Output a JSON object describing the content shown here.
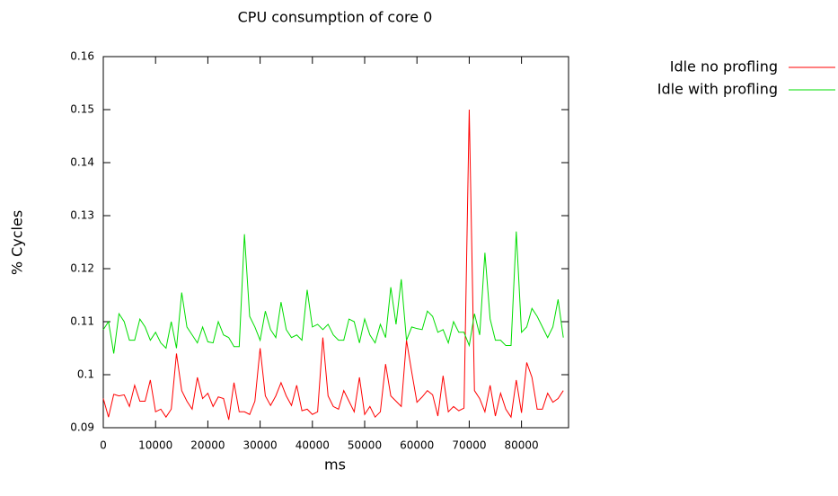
{
  "chart_data": {
    "type": "line",
    "title": "CPU consumption of core 0",
    "xlabel": "ms",
    "ylabel": "% Cycles",
    "x": [
      0,
      1000,
      2000,
      3000,
      4000,
      5000,
      6000,
      7000,
      8000,
      9000,
      10000,
      11000,
      12000,
      13000,
      14000,
      15000,
      16000,
      17000,
      18000,
      19000,
      20000,
      21000,
      22000,
      23000,
      24000,
      25000,
      26000,
      27000,
      28000,
      29000,
      30000,
      31000,
      32000,
      33000,
      34000,
      35000,
      36000,
      37000,
      38000,
      39000,
      40000,
      41000,
      42000,
      43000,
      44000,
      45000,
      46000,
      47000,
      48000,
      49000,
      50000,
      51000,
      52000,
      53000,
      54000,
      55000,
      56000,
      57000,
      58000,
      59000,
      60000,
      61000,
      62000,
      63000,
      64000,
      65000,
      66000,
      67000,
      68000,
      69000,
      70000,
      71000,
      72000,
      73000,
      74000,
      75000,
      76000,
      77000,
      78000,
      79000,
      80000,
      81000,
      82000,
      83000,
      84000,
      85000,
      86000,
      87000,
      88000
    ],
    "series": [
      {
        "name": "Idle no profling",
        "color": "#ff0000",
        "values": [
          0.0955,
          0.092,
          0.0963,
          0.096,
          0.0962,
          0.094,
          0.098,
          0.095,
          0.095,
          0.099,
          0.093,
          0.0935,
          0.092,
          0.0935,
          0.104,
          0.097,
          0.095,
          0.0935,
          0.0995,
          0.0955,
          0.0965,
          0.094,
          0.0958,
          0.0955,
          0.0915,
          0.0985,
          0.093,
          0.093,
          0.0925,
          0.095,
          0.105,
          0.096,
          0.0942,
          0.096,
          0.0985,
          0.096,
          0.0942,
          0.098,
          0.0932,
          0.0935,
          0.0925,
          0.093,
          0.107,
          0.096,
          0.094,
          0.0935,
          0.097,
          0.095,
          0.093,
          0.0995,
          0.0925,
          0.094,
          0.092,
          0.093,
          0.102,
          0.096,
          0.095,
          0.094,
          0.1065,
          0.1005,
          0.0948,
          0.0958,
          0.097,
          0.0962,
          0.0922,
          0.0998,
          0.093,
          0.094,
          0.0932,
          0.0937,
          0.15,
          0.097,
          0.0955,
          0.093,
          0.098,
          0.0922,
          0.0965,
          0.0935,
          0.092,
          0.099,
          0.0928,
          0.1023,
          0.0995,
          0.0935,
          0.0935,
          0.0965,
          0.0948,
          0.0955,
          0.097
        ]
      },
      {
        "name": "Idle with profling",
        "color": "#00dd00",
        "values": [
          0.1085,
          0.11,
          0.104,
          0.1115,
          0.11,
          0.1065,
          0.1065,
          0.1105,
          0.109,
          0.1065,
          0.108,
          0.106,
          0.105,
          0.11,
          0.105,
          0.1155,
          0.109,
          0.1075,
          0.106,
          0.109,
          0.1062,
          0.106,
          0.11,
          0.1075,
          0.107,
          0.1053,
          0.1053,
          0.1265,
          0.111,
          0.109,
          0.1065,
          0.112,
          0.1085,
          0.107,
          0.1137,
          0.1085,
          0.107,
          0.1075,
          0.1065,
          0.116,
          0.109,
          0.1095,
          0.1085,
          0.1095,
          0.1075,
          0.1065,
          0.1065,
          0.1105,
          0.11,
          0.106,
          0.1105,
          0.1075,
          0.106,
          0.1095,
          0.107,
          0.1165,
          0.1095,
          0.118,
          0.1065,
          0.109,
          0.1087,
          0.1085,
          0.112,
          0.111,
          0.108,
          0.1085,
          0.106,
          0.11,
          0.108,
          0.108,
          0.1055,
          0.1115,
          0.1075,
          0.123,
          0.1105,
          0.1065,
          0.1065,
          0.1055,
          0.1055,
          0.127,
          0.108,
          0.109,
          0.1125,
          0.111,
          0.109,
          0.107,
          0.109,
          0.1142,
          0.107
        ]
      }
    ],
    "xlim": [
      0,
      89000
    ],
    "xticks": [
      0,
      10000,
      20000,
      30000,
      40000,
      50000,
      60000,
      70000,
      80000
    ],
    "ylim": [
      0.09,
      0.16
    ],
    "yticks": [
      0.09,
      0.1,
      0.11,
      0.12,
      0.13,
      0.14,
      0.15,
      0.16
    ],
    "legend": "outside-right"
  }
}
